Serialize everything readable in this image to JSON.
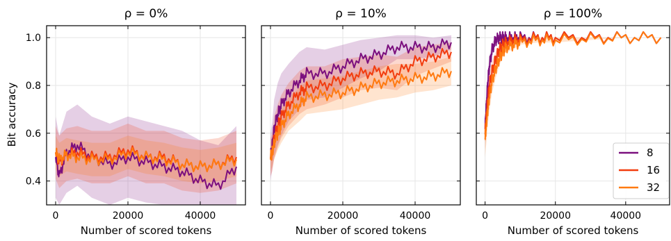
{
  "ylabel": "Bit accuracy",
  "legend": {
    "placement": "lower-right",
    "entries": [
      "8",
      "16",
      "32"
    ]
  },
  "colors": {
    "8": "#7b0f7e",
    "16": "#f23c0e",
    "32": "#ff7a10",
    "grid": "#e6e6e6"
  },
  "chart_data": [
    {
      "type": "line",
      "title": "ρ = 0%",
      "xlabel": "Number of scored tokens",
      "xlim": [
        -2500,
        52500
      ],
      "ylim": [
        0.3,
        1.05
      ],
      "xticks": [
        0,
        20000,
        40000
      ],
      "xtick_labels": [
        "0",
        "20000",
        "40000"
      ],
      "yticks": [
        0.4,
        0.6,
        0.8,
        1.0
      ],
      "ytick_labels": [
        "0.4",
        "0.6",
        "0.8",
        "1.0"
      ],
      "grid": true,
      "x": [
        0,
        1000,
        3000,
        6000,
        10000,
        15000,
        20000,
        25000,
        30000,
        35000,
        40000,
        45000,
        50000
      ],
      "series": [
        {
          "name": "8",
          "values": [
            0.5,
            0.42,
            0.52,
            0.55,
            0.5,
            0.47,
            0.5,
            0.48,
            0.46,
            0.44,
            0.4,
            0.38,
            0.46
          ],
          "band": [
            0.17,
            0.17,
            0.17,
            0.17,
            0.17,
            0.17,
            0.17,
            0.17,
            0.17,
            0.17,
            0.17,
            0.17,
            0.17
          ]
        },
        {
          "name": "16",
          "values": [
            0.52,
            0.48,
            0.51,
            0.52,
            0.5,
            0.5,
            0.53,
            0.5,
            0.5,
            0.47,
            0.46,
            0.47,
            0.5
          ],
          "band": [
            0.11,
            0.11,
            0.11,
            0.11,
            0.11,
            0.11,
            0.11,
            0.11,
            0.11,
            0.11,
            0.11,
            0.11,
            0.11
          ]
        },
        {
          "name": "32",
          "values": [
            0.52,
            0.49,
            0.51,
            0.5,
            0.49,
            0.49,
            0.52,
            0.5,
            0.49,
            0.47,
            0.46,
            0.47,
            0.49
          ],
          "band": [
            0.07,
            0.07,
            0.07,
            0.07,
            0.07,
            0.07,
            0.07,
            0.07,
            0.07,
            0.07,
            0.07,
            0.07,
            0.07
          ]
        }
      ]
    },
    {
      "type": "line",
      "title": "ρ = 10%",
      "xlabel": "Number of scored tokens",
      "xlim": [
        -2500,
        52500
      ],
      "ylim": [
        0.3,
        1.05
      ],
      "xticks": [
        0,
        20000,
        40000
      ],
      "xtick_labels": [
        "0",
        "20000",
        "40000"
      ],
      "yticks": [
        0.4,
        0.6,
        0.8,
        1.0
      ],
      "ytick_labels": [
        "",
        "",
        "",
        ""
      ],
      "grid": true,
      "x": [
        0,
        500,
        1000,
        2000,
        3000,
        5000,
        8000,
        10000,
        15000,
        20000,
        25000,
        30000,
        35000,
        40000,
        45000,
        50000
      ],
      "series": [
        {
          "name": "8",
          "values": [
            0.5,
            0.55,
            0.62,
            0.68,
            0.72,
            0.77,
            0.82,
            0.85,
            0.85,
            0.88,
            0.91,
            0.93,
            0.96,
            0.96,
            0.96,
            0.98
          ],
          "band": [
            0.1,
            0.1,
            0.12,
            0.13,
            0.13,
            0.12,
            0.12,
            0.11,
            0.1,
            0.09,
            0.08,
            0.07,
            0.05,
            0.05,
            0.04,
            0.03
          ]
        },
        {
          "name": "16",
          "values": [
            0.5,
            0.52,
            0.58,
            0.63,
            0.67,
            0.72,
            0.77,
            0.79,
            0.8,
            0.83,
            0.85,
            0.86,
            0.85,
            0.9,
            0.92,
            0.94
          ],
          "band": [
            0.08,
            0.08,
            0.09,
            0.09,
            0.09,
            0.09,
            0.09,
            0.09,
            0.08,
            0.08,
            0.07,
            0.07,
            0.07,
            0.06,
            0.05,
            0.04
          ]
        },
        {
          "name": "32",
          "values": [
            0.5,
            0.52,
            0.56,
            0.6,
            0.63,
            0.68,
            0.72,
            0.75,
            0.76,
            0.77,
            0.79,
            0.81,
            0.82,
            0.83,
            0.84,
            0.86
          ],
          "band": [
            0.06,
            0.06,
            0.07,
            0.07,
            0.07,
            0.07,
            0.07,
            0.07,
            0.07,
            0.07,
            0.07,
            0.07,
            0.07,
            0.06,
            0.06,
            0.06
          ]
        }
      ]
    },
    {
      "type": "line",
      "title": "ρ = 100%",
      "xlabel": "Number of scored tokens",
      "xlim": [
        -2500,
        52500
      ],
      "ylim": [
        0.3,
        1.05
      ],
      "xticks": [
        0,
        20000,
        40000
      ],
      "xtick_labels": [
        "0",
        "20000",
        "40000"
      ],
      "yticks": [
        0.4,
        0.6,
        0.8,
        1.0
      ],
      "ytick_labels": [
        "",
        "",
        "",
        ""
      ],
      "grid": true,
      "x": [
        0,
        300,
        700,
        1200,
        2000,
        3000,
        4000,
        5000,
        6000,
        8000,
        10000,
        15000,
        20000,
        30000,
        40000,
        50000
      ],
      "series": [
        {
          "name": "8",
          "values": [
            0.62,
            0.7,
            0.8,
            0.88,
            0.95,
            0.99,
            1.0,
            1.0,
            1.0,
            1.0,
            1.0,
            1.0,
            1.0,
            1.0,
            1.0,
            1.0
          ],
          "band": [
            0.06,
            0.06,
            0.05,
            0.04,
            0.03,
            0.01,
            0.0,
            0.0,
            0.0,
            0.0,
            0.0,
            0.0,
            0.0,
            0.0,
            0.0,
            0.0
          ]
        },
        {
          "name": "16",
          "values": [
            0.6,
            0.66,
            0.73,
            0.8,
            0.86,
            0.91,
            0.95,
            0.97,
            0.98,
            0.99,
            0.99,
            1.0,
            1.0,
            1.0,
            1.0,
            1.0
          ],
          "band": [
            0.07,
            0.07,
            0.06,
            0.05,
            0.04,
            0.03,
            0.02,
            0.02,
            0.01,
            0.01,
            0.01,
            0.0,
            0.0,
            0.0,
            0.0,
            0.0
          ]
        },
        {
          "name": "32",
          "values": [
            0.58,
            0.63,
            0.69,
            0.75,
            0.82,
            0.87,
            0.91,
            0.94,
            0.96,
            0.97,
            0.98,
            0.99,
            0.99,
            0.995,
            1.0,
            1.0
          ],
          "band": [
            0.08,
            0.08,
            0.07,
            0.06,
            0.05,
            0.04,
            0.03,
            0.02,
            0.02,
            0.02,
            0.01,
            0.01,
            0.01,
            0.005,
            0.0,
            0.0
          ]
        }
      ]
    }
  ]
}
